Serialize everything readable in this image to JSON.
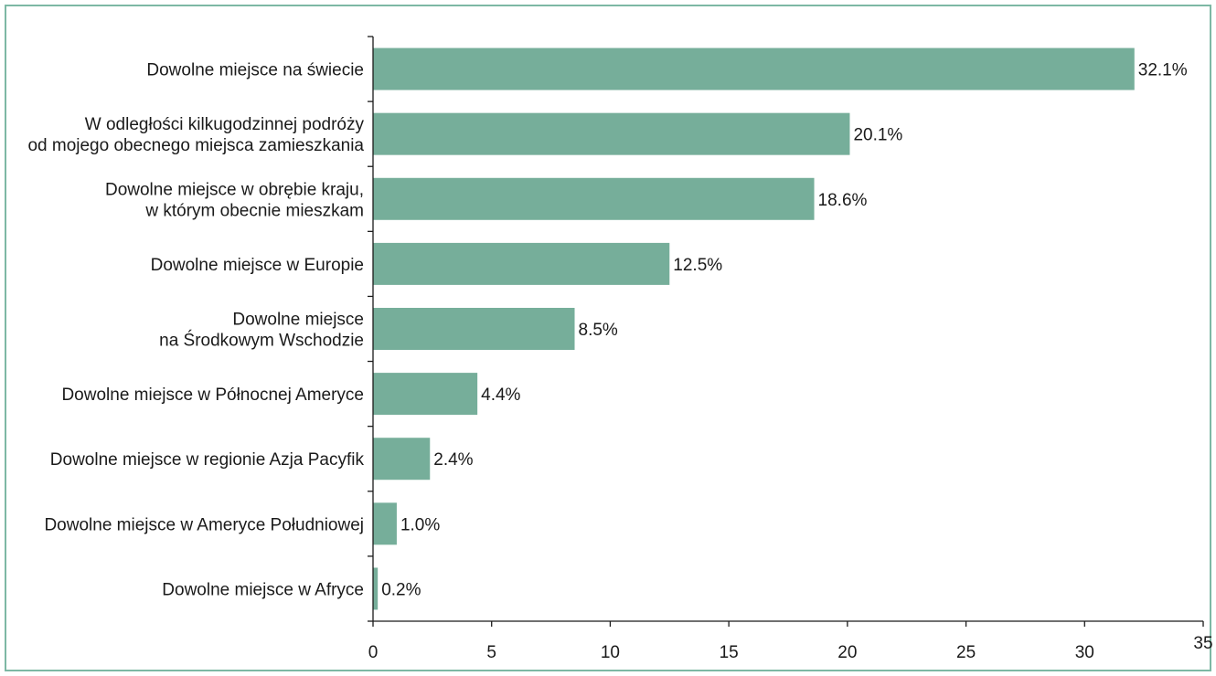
{
  "chart_data": {
    "type": "bar",
    "orientation": "horizontal",
    "categories": [
      [
        "Dowolne miejsce na świecie"
      ],
      [
        "W odległości kilkugodzinnej podróży",
        "od mojego obecnego miejsca zamieszkania"
      ],
      [
        "Dowolne miejsce w obrębie kraju,",
        "w którym obecnie mieszkam"
      ],
      [
        "Dowolne miejsce w Europie"
      ],
      [
        "Dowolne miejsce",
        "na Środkowym Wschodzie"
      ],
      [
        "Dowolne miejsce w Północnej Ameryce"
      ],
      [
        "Dowolne miejsce w regionie Azja Pacyfik"
      ],
      [
        "Dowolne miejsce w Ameryce Południowej"
      ],
      [
        "Dowolne miejsce w Afryce"
      ]
    ],
    "values": [
      32.1,
      20.1,
      18.6,
      12.5,
      8.5,
      4.4,
      2.4,
      1.0,
      0.2
    ],
    "value_labels": [
      "32.1%",
      "20.1%",
      "18.6%",
      "12.5%",
      "8.5%",
      "4.4%",
      "2.4%",
      "1.0%",
      "0.2%"
    ],
    "xlim": [
      0,
      35
    ],
    "xticks": [
      0,
      5,
      10,
      15,
      20,
      25,
      30,
      35
    ],
    "grid": false,
    "colors": {
      "bar": "#76ae9a",
      "frame": "#7db8a4",
      "axis": "#1a1a1a"
    }
  }
}
